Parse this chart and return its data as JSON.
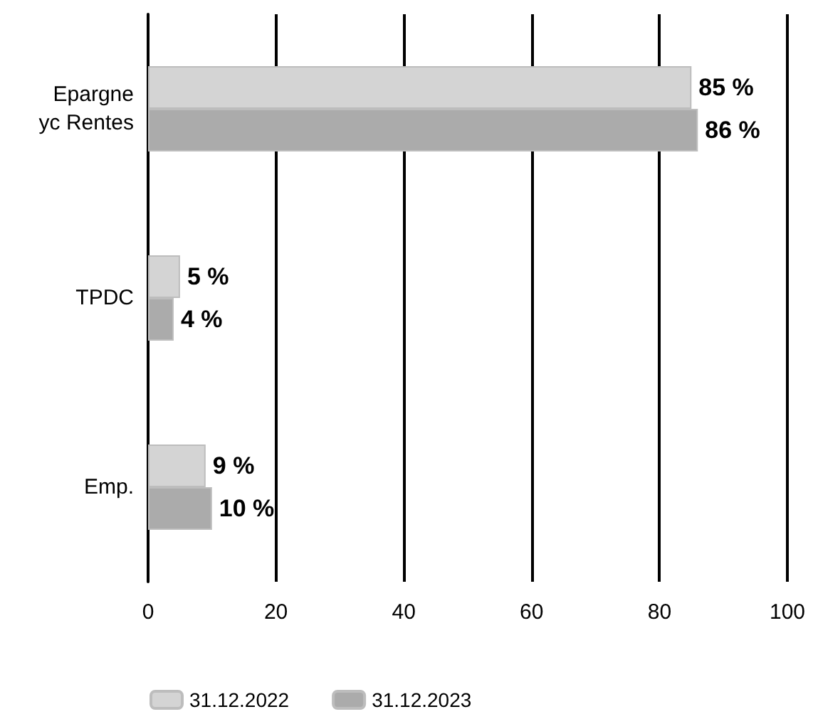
{
  "chart_data": {
    "type": "bar",
    "orientation": "horizontal",
    "categories": [
      "Epargne\nyc Rentes",
      "TPDC",
      "Emp."
    ],
    "series": [
      {
        "name": "31.12.2022",
        "color": "#d4d4d4",
        "values": [
          85,
          5,
          9
        ],
        "value_labels": [
          "85 %",
          "5 %",
          "9 %"
        ]
      },
      {
        "name": "31.12.2023",
        "color": "#ababab",
        "values": [
          86,
          4,
          10
        ],
        "value_labels": [
          "86 %",
          "4 %",
          "10 %"
        ]
      }
    ],
    "xlim": [
      0,
      100
    ],
    "xticks": [
      0,
      20,
      40,
      60,
      80,
      100
    ],
    "grid": "x",
    "legend": "bottom left"
  }
}
